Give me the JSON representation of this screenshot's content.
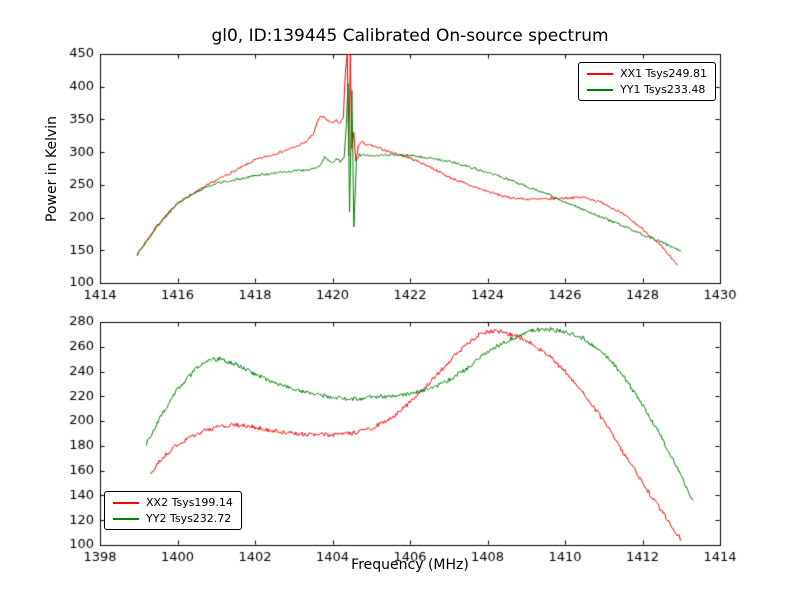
{
  "figure": {
    "background": "#ffffff",
    "frame_color": "#000000"
  },
  "chart_data": [
    {
      "type": "line",
      "title": "gl0, ID:139445 Calibrated On-source spectrum",
      "xlabel": "",
      "ylabel": "Power in Kelvin",
      "xlim": [
        1414,
        1430
      ],
      "ylim": [
        100,
        450
      ],
      "xticks": [
        1414,
        1416,
        1418,
        1420,
        1422,
        1424,
        1426,
        1428,
        1430
      ],
      "yticks": [
        100,
        150,
        200,
        250,
        300,
        350,
        400,
        450
      ],
      "grid": false,
      "legend_position": "upper right",
      "series": [
        {
          "name": "XX1 Tsys249.81",
          "color": "#ff0000",
          "noise": 1.8,
          "x": [
            1414.95,
            1415.2,
            1415.5,
            1416,
            1416.5,
            1417,
            1417.5,
            1418,
            1418.5,
            1419,
            1419.3,
            1419.5,
            1419.6,
            1419.7,
            1419.8,
            1419.95,
            1420.1,
            1420.2,
            1420.28,
            1420.33,
            1420.38,
            1420.42,
            1420.46,
            1420.5,
            1420.55,
            1420.6,
            1420.67,
            1420.75,
            1420.85,
            1421,
            1421.5,
            1422,
            1422.5,
            1423,
            1423.5,
            1424,
            1424.5,
            1425,
            1425.5,
            1426,
            1426.5,
            1427,
            1427.5,
            1428,
            1428.5,
            1428.9
          ],
          "y": [
            143,
            165,
            190,
            222,
            240,
            257,
            272,
            288,
            297,
            307,
            315,
            327,
            345,
            355,
            352,
            345,
            348,
            344,
            352,
            420,
            450,
            295,
            448,
            305,
            330,
            285,
            310,
            316,
            312,
            310,
            300,
            291,
            278,
            262,
            250,
            240,
            231,
            228,
            228,
            230,
            231,
            222,
            205,
            183,
            155,
            127
          ]
        },
        {
          "name": "YY1 Tsys233.48",
          "color": "#008000",
          "noise": 1.8,
          "x": [
            1414.95,
            1415.2,
            1415.5,
            1416,
            1416.5,
            1417,
            1417.5,
            1418,
            1418.5,
            1419,
            1419.5,
            1419.7,
            1419.8,
            1419.9,
            1420.0,
            1420.1,
            1420.2,
            1420.3,
            1420.36,
            1420.4,
            1420.44,
            1420.5,
            1420.55,
            1420.62,
            1420.7,
            1421,
            1421.5,
            1422,
            1422.5,
            1423,
            1423.5,
            1424,
            1424.5,
            1425,
            1425.5,
            1426,
            1426.5,
            1427,
            1427.5,
            1428,
            1428.5,
            1429
          ],
          "y": [
            143,
            163,
            188,
            222,
            240,
            252,
            258,
            264,
            268,
            271,
            274,
            281,
            292,
            287,
            284,
            290,
            286,
            291,
            345,
            405,
            210,
            395,
            185,
            288,
            296,
            295,
            296,
            295,
            291,
            286,
            278,
            269,
            259,
            248,
            237,
            224,
            212,
            199,
            187,
            174,
            162,
            149
          ]
        }
      ]
    },
    {
      "type": "line",
      "title": "",
      "xlabel": "Frequency (MHz)",
      "ylabel": "",
      "xlim": [
        1398,
        1414
      ],
      "ylim": [
        100,
        280
      ],
      "xticks": [
        1398,
        1400,
        1402,
        1404,
        1406,
        1408,
        1410,
        1412,
        1414
      ],
      "yticks": [
        100,
        120,
        140,
        160,
        180,
        200,
        220,
        240,
        260,
        280
      ],
      "grid": false,
      "legend_position": "lower left",
      "series": [
        {
          "name": "XX2 Tsys199.14",
          "color": "#ff0000",
          "noise": 1.8,
          "x": [
            1399.3,
            1399.6,
            1400,
            1400.5,
            1401,
            1401.5,
            1402,
            1402.5,
            1403,
            1403.5,
            1404,
            1404.5,
            1405,
            1405.5,
            1406,
            1406.5,
            1407,
            1407.5,
            1407.8,
            1408.1,
            1408.4,
            1408.7,
            1409,
            1409.5,
            1410,
            1410.5,
            1411,
            1411.5,
            1412,
            1412.5,
            1413
          ],
          "y": [
            157,
            170,
            181,
            190,
            195,
            197,
            195,
            192,
            190,
            189,
            189,
            190,
            194,
            202,
            215,
            231,
            248,
            263,
            270,
            273,
            272,
            269,
            265,
            255,
            240,
            222,
            200,
            175,
            150,
            127,
            104
          ]
        },
        {
          "name": "YY2 Tsys232.72",
          "color": "#008000",
          "noise": 1.8,
          "x": [
            1399.2,
            1399.5,
            1400,
            1400.5,
            1400.8,
            1401.1,
            1401.5,
            1402,
            1402.5,
            1403,
            1403.5,
            1404,
            1404.5,
            1405,
            1405.5,
            1406,
            1406.5,
            1407,
            1407.5,
            1408,
            1408.5,
            1409,
            1409.3,
            1409.6,
            1410,
            1410.4,
            1410.8,
            1411.2,
            1411.6,
            1412,
            1412.4,
            1412.8,
            1413.3
          ],
          "y": [
            182,
            200,
            226,
            243,
            249,
            250,
            246,
            238,
            231,
            226,
            222,
            219,
            218,
            219,
            220,
            222,
            226,
            233,
            243,
            256,
            265,
            271,
            274,
            274,
            272,
            268,
            260,
            248,
            232,
            213,
            192,
            168,
            136
          ]
        }
      ]
    }
  ]
}
